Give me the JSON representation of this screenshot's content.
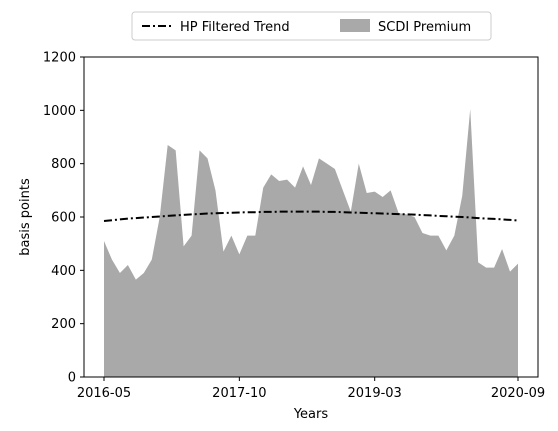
{
  "chart_data": {
    "type": "area",
    "xlabel": "Years",
    "ylabel": "basis points",
    "ylim": [
      0,
      1200
    ],
    "yticks": [
      0,
      200,
      400,
      600,
      800,
      1000,
      1200
    ],
    "xticks": [
      "2016-05",
      "2017-10",
      "2019-03",
      "2020-09"
    ],
    "xlim": [
      "2016-05",
      "2020-09"
    ],
    "legend_position": "top-center",
    "grid": false,
    "x": [
      "2016-05",
      "2016-06",
      "2016-07",
      "2016-08",
      "2016-09",
      "2016-10",
      "2016-11",
      "2016-12",
      "2017-01",
      "2017-02",
      "2017-03",
      "2017-04",
      "2017-05",
      "2017-06",
      "2017-07",
      "2017-08",
      "2017-09",
      "2017-10",
      "2017-11",
      "2017-12",
      "2018-01",
      "2018-02",
      "2018-03",
      "2018-04",
      "2018-05",
      "2018-06",
      "2018-07",
      "2018-08",
      "2018-09",
      "2018-10",
      "2018-11",
      "2018-12",
      "2019-01",
      "2019-02",
      "2019-03",
      "2019-04",
      "2019-05",
      "2019-06",
      "2019-07",
      "2019-08",
      "2019-09",
      "2019-10",
      "2019-11",
      "2019-12",
      "2020-01",
      "2020-02",
      "2020-03",
      "2020-04",
      "2020-05",
      "2020-06",
      "2020-07",
      "2020-08",
      "2020-09"
    ],
    "series": [
      {
        "name": "HP Filtered Trend",
        "style": "dash-dot",
        "color": "#000000",
        "values": [
          585,
          588,
          591,
          594,
          596,
          598,
          600,
          602,
          604,
          606,
          608,
          610,
          611,
          613,
          614,
          615,
          616,
          617,
          618,
          618,
          619,
          619,
          620,
          620,
          620,
          620,
          620,
          620,
          619,
          619,
          618,
          617,
          616,
          615,
          614,
          613,
          612,
          611,
          610,
          609,
          607,
          606,
          604,
          603,
          601,
          600,
          598,
          596,
          594,
          593,
          591,
          589,
          587
        ]
      },
      {
        "name": "SCDI Premium",
        "style": "area",
        "color": "#a9a9a9",
        "values": [
          510,
          440,
          390,
          420,
          365,
          390,
          440,
          600,
          870,
          850,
          490,
          530,
          850,
          820,
          700,
          470,
          530,
          460,
          530,
          530,
          710,
          760,
          735,
          740,
          710,
          790,
          720,
          820,
          800,
          780,
          700,
          620,
          800,
          690,
          695,
          675,
          700,
          615,
          610,
          600,
          540,
          530,
          530,
          475,
          530,
          680,
          1005,
          430,
          410,
          410,
          480,
          395,
          425
        ]
      }
    ]
  }
}
